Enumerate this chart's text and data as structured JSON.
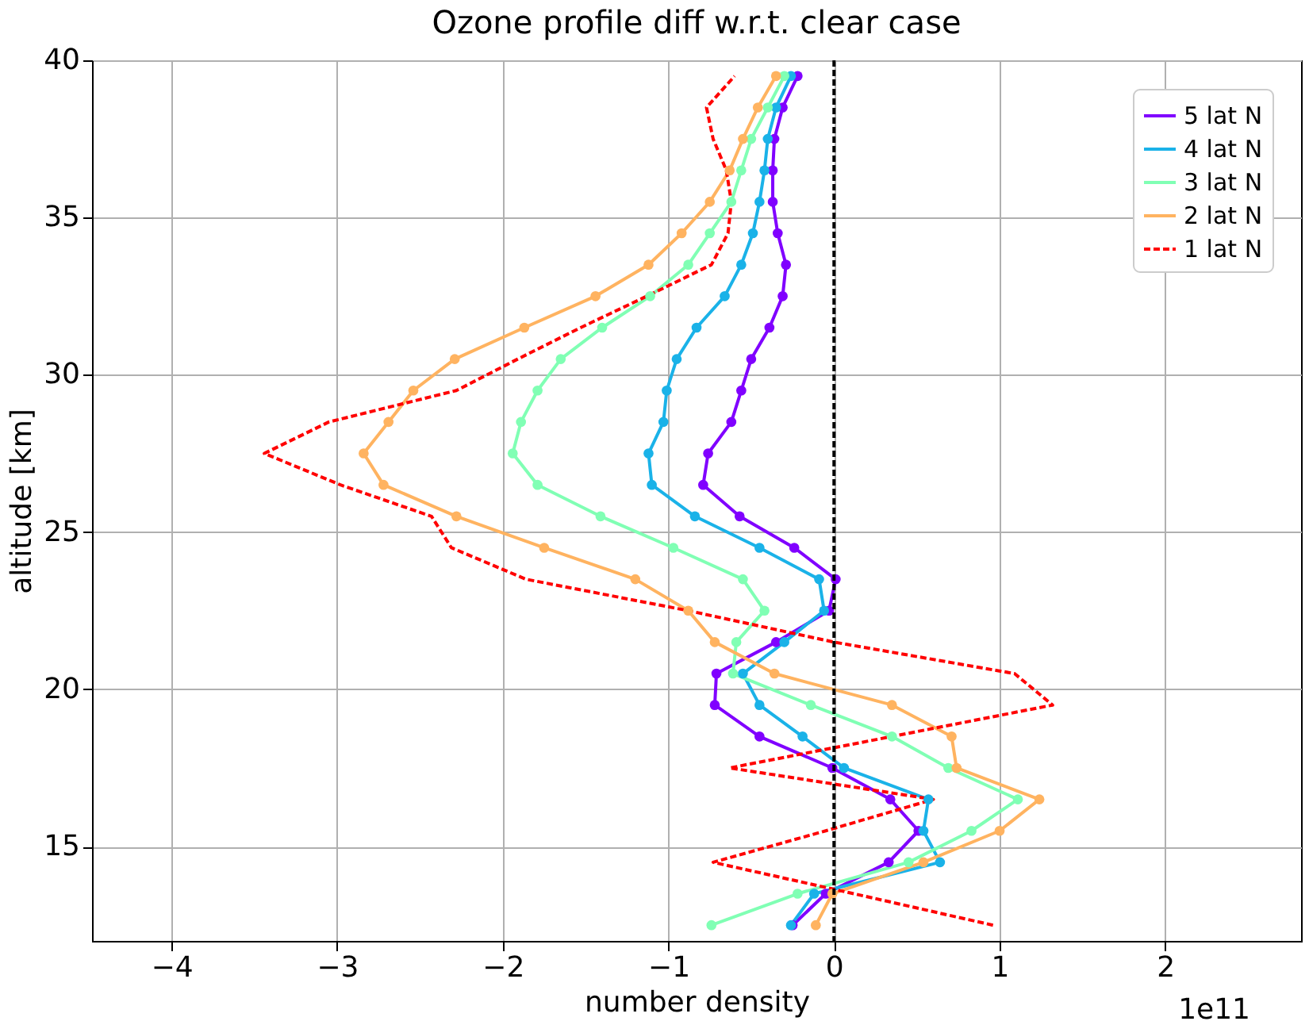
{
  "chart_data": {
    "type": "line",
    "title": "Ozone profile diff w.r.t. clear case",
    "xlabel": "number density",
    "ylabel": "altitude [km]",
    "orientation": "horizontal",
    "x": [
      12.5,
      13.5,
      14.5,
      15.5,
      16.5,
      17.5,
      18.5,
      19.5,
      20.5,
      21.5,
      22.5,
      23.5,
      24.5,
      25.5,
      26.5,
      27.5,
      28.5,
      29.5,
      30.5,
      31.5,
      32.5,
      33.5,
      34.5,
      35.5,
      36.5,
      37.5,
      38.5,
      39.5
    ],
    "series": [
      {
        "name": "5 lat N",
        "color": "#8000ff",
        "marker": "circle",
        "line_style": "solid",
        "values": [
          -0.25,
          -0.05,
          0.33,
          0.51,
          0.34,
          -0.01,
          -0.45,
          -0.72,
          -0.71,
          -0.35,
          -0.03,
          0.01,
          -0.24,
          -0.57,
          -0.79,
          -0.76,
          -0.62,
          -0.56,
          -0.5,
          -0.39,
          -0.31,
          -0.29,
          -0.34,
          -0.37,
          -0.37,
          -0.36,
          -0.31,
          -0.22
        ]
      },
      {
        "name": "4 lat N",
        "color": "#1ab2e8",
        "marker": "circle",
        "line_style": "solid",
        "values": [
          -0.26,
          -0.12,
          0.64,
          0.54,
          0.57,
          0.06,
          -0.19,
          -0.45,
          -0.55,
          -0.3,
          -0.06,
          -0.09,
          -0.45,
          -0.84,
          -1.1,
          -1.12,
          -1.03,
          -1.01,
          -0.95,
          -0.83,
          -0.66,
          -0.56,
          -0.49,
          -0.45,
          -0.42,
          -0.4,
          -0.35,
          -0.26
        ]
      },
      {
        "name": "3 lat N",
        "color": "#80ffb4",
        "marker": "circle",
        "line_style": "solid",
        "values": [
          -0.74,
          -0.22,
          0.45,
          0.83,
          1.11,
          0.69,
          0.35,
          -0.14,
          -0.61,
          -0.59,
          -0.42,
          -0.55,
          -0.97,
          -1.41,
          -1.79,
          -1.94,
          -1.89,
          -1.79,
          -1.65,
          -1.4,
          -1.11,
          -0.88,
          -0.75,
          -0.62,
          -0.56,
          -0.5,
          -0.4,
          -0.3
        ]
      },
      {
        "name": "2 lat N",
        "color": "#ffb360",
        "marker": "circle",
        "line_style": "solid",
        "values": [
          -0.11,
          -0.01,
          0.54,
          1.0,
          1.24,
          0.74,
          0.71,
          0.35,
          -0.36,
          -0.72,
          -0.88,
          -1.2,
          -1.75,
          -2.28,
          -2.72,
          -2.84,
          -2.69,
          -2.54,
          -2.29,
          -1.87,
          -1.44,
          -1.12,
          -0.92,
          -0.75,
          -0.63,
          -0.55,
          -0.46,
          -0.35
        ]
      },
      {
        "name": "1 lat N",
        "color": "#ff0000",
        "marker": "none",
        "line_style": "dashed",
        "values": [
          0.96,
          0.12,
          -0.73,
          -0.05,
          0.6,
          -0.63,
          0.35,
          1.32,
          1.09,
          0.0,
          -0.88,
          -1.86,
          -2.31,
          -2.43,
          -2.98,
          -3.44,
          -3.05,
          -2.28,
          -1.91,
          -1.53,
          -1.13,
          -0.74,
          -0.64,
          -0.62,
          -0.65,
          -0.73,
          -0.77,
          -0.6
        ]
      }
    ],
    "xlim": [
      -4.48,
      2.82
    ],
    "xticks": [
      -4,
      -3,
      -2,
      -1,
      0,
      1,
      2
    ],
    "ylim": [
      12,
      40
    ],
    "yticks": [
      15,
      20,
      25,
      30,
      35,
      40
    ],
    "ref_lines": [
      {
        "axis": "x",
        "value": 0,
        "color": "#000000",
        "line_style": "dashed"
      }
    ],
    "annotations": [
      "1e11"
    ],
    "grid": true,
    "legend": "top right"
  }
}
